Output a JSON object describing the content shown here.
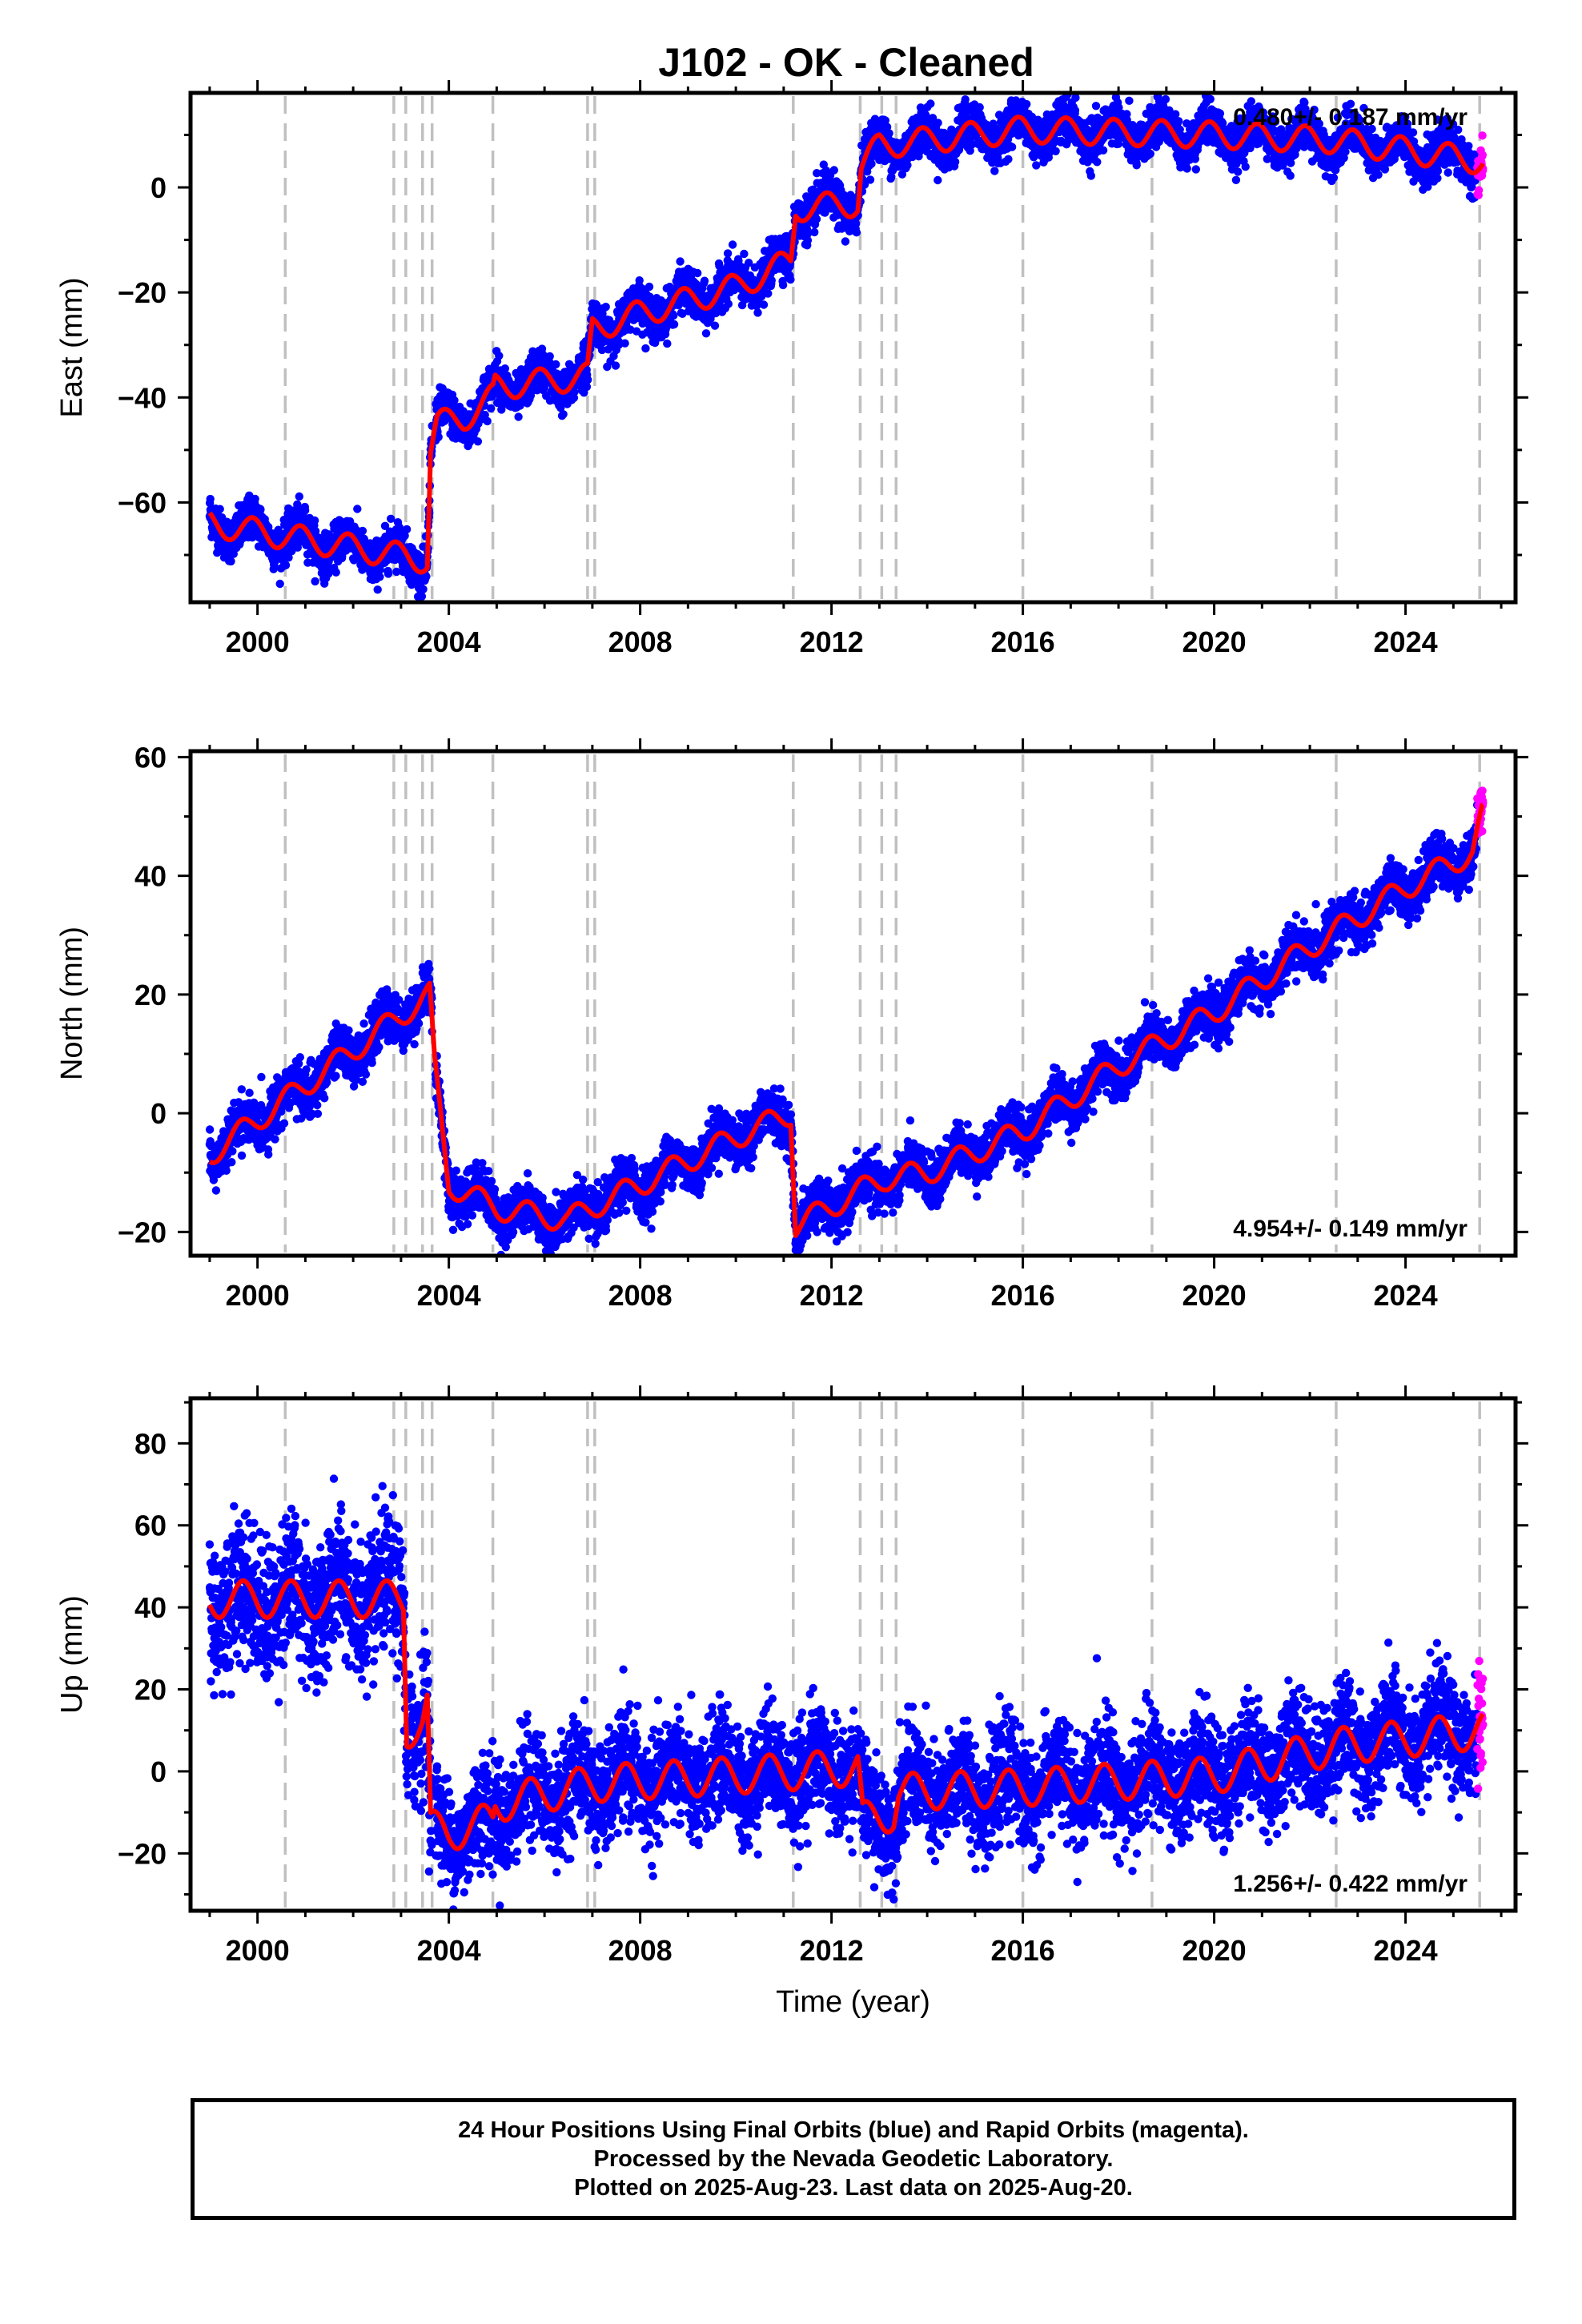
{
  "title": "J102  - OK - Cleaned",
  "footer": {
    "line1": "24 Hour Positions Using Final Orbits (blue) and Rapid Orbits (magenta).",
    "line2": "Processed by the Nevada Geodetic Laboratory.",
    "line3": "Plotted on 2025-Aug-23. Last data on 2025-Aug-20."
  },
  "chart_data": [
    {
      "type": "scatter",
      "ylabel": "East (mm)",
      "xlabel": "",
      "rate_label": "0.480+/- 0.187 mm/yr",
      "xlim": [
        1998.6,
        2026.3
      ],
      "ylim": [
        -79,
        18
      ],
      "xticks": [
        2000,
        2004,
        2008,
        2012,
        2016,
        2020,
        2024
      ],
      "yticks": [
        -60,
        -40,
        -20,
        0
      ],
      "grid": false,
      "colors": {
        "final": "#0000ff",
        "rapid": "#ff00ff",
        "model": "#ff0000",
        "event": "#c0c0c0"
      },
      "event_lines": [
        2000.58,
        2002.85,
        2003.1,
        2003.45,
        2003.65,
        2004.92,
        2006.9,
        2007.05,
        2011.2,
        2012.6,
        2013.05,
        2013.35,
        2016.0,
        2018.7,
        2022.55,
        2025.55
      ],
      "series": [
        {
          "name": "model",
          "points": [
            [
              1999.0,
              -64
            ],
            [
              2003.55,
              -71
            ],
            [
              2003.62,
              -50
            ],
            [
              2003.75,
              -45
            ],
            [
              2004.3,
              -44
            ],
            [
              2004.92,
              -40
            ],
            [
              2004.97,
              -38
            ],
            [
              2006.9,
              -36
            ],
            [
              2007.0,
              -27
            ],
            [
              2008.0,
              -24
            ],
            [
              2010.0,
              -19
            ],
            [
              2011.15,
              -14
            ],
            [
              2011.25,
              -4
            ],
            [
              2012.55,
              -3
            ],
            [
              2012.62,
              4
            ],
            [
              2013.0,
              8
            ],
            [
              2016.0,
              11
            ],
            [
              2020.0,
              10
            ],
            [
              2022.5,
              9
            ],
            [
              2025.6,
              5
            ]
          ],
          "seasonal_amplitude": 2.5,
          "seasonal_phase": 0.35
        }
      ]
    },
    {
      "type": "scatter",
      "ylabel": "North (mm)",
      "xlabel": "",
      "rate_label": "4.954+/- 0.149 mm/yr",
      "xlim": [
        1998.6,
        2026.3
      ],
      "ylim": [
        -24,
        61
      ],
      "xticks": [
        2000,
        2004,
        2008,
        2012,
        2016,
        2020,
        2024
      ],
      "yticks": [
        -20,
        0,
        20,
        40,
        60
      ],
      "grid": false,
      "colors": {
        "final": "#0000ff",
        "rapid": "#ff00ff",
        "model": "#ff0000",
        "event": "#c0c0c0"
      },
      "event_lines": [
        2000.58,
        2002.85,
        2003.1,
        2003.45,
        2003.65,
        2004.92,
        2006.9,
        2007.05,
        2011.2,
        2012.6,
        2013.05,
        2013.35,
        2016.0,
        2018.7,
        2022.55,
        2025.55
      ],
      "series": [
        {
          "name": "model",
          "points": [
            [
              1999.0,
              -7
            ],
            [
              2003.6,
              20
            ],
            [
              2003.7,
              8
            ],
            [
              2004.0,
              -12
            ],
            [
              2005.0,
              -16
            ],
            [
              2006.5,
              -18
            ],
            [
              2006.95,
              -16
            ],
            [
              2008.0,
              -12
            ],
            [
              2010.0,
              -4
            ],
            [
              2011.15,
              0
            ],
            [
              2011.25,
              -19
            ],
            [
              2012.6,
              -13
            ],
            [
              2013.1,
              -11
            ],
            [
              2014.0,
              -10
            ],
            [
              2016.0,
              -3
            ],
            [
              2018.0,
              8
            ],
            [
              2020.0,
              17
            ],
            [
              2022.0,
              28
            ],
            [
              2024.0,
              38
            ],
            [
              2025.4,
              44
            ],
            [
              2025.6,
              50
            ]
          ],
          "seasonal_amplitude": 2.0,
          "seasonal_phase": 0.6
        }
      ]
    },
    {
      "type": "scatter",
      "ylabel": "Up (mm)",
      "xlabel": "Time (year)",
      "rate_label": "1.256+/- 0.422 mm/yr",
      "xlim": [
        1998.6,
        2026.3
      ],
      "ylim": [
        -34,
        91
      ],
      "xticks": [
        2000,
        2004,
        2008,
        2012,
        2016,
        2020,
        2024
      ],
      "yticks": [
        -20,
        0,
        20,
        40,
        60,
        80
      ],
      "grid": false,
      "colors": {
        "final": "#0000ff",
        "rapid": "#ff00ff",
        "model": "#ff0000",
        "event": "#c0c0c0"
      },
      "event_lines": [
        2000.58,
        2002.85,
        2003.1,
        2003.45,
        2003.65,
        2004.92,
        2006.9,
        2007.05,
        2011.2,
        2012.6,
        2013.05,
        2013.35,
        2016.0,
        2018.7,
        2022.55,
        2025.55
      ],
      "series": [
        {
          "name": "model",
          "points": [
            [
              1999.0,
              42
            ],
            [
              2003.05,
              42
            ],
            [
              2003.12,
              10
            ],
            [
              2003.45,
              12
            ],
            [
              2003.55,
              16
            ],
            [
              2003.62,
              -14
            ],
            [
              2004.0,
              -15
            ],
            [
              2004.92,
              -12
            ],
            [
              2004.97,
              -8
            ],
            [
              2007.0,
              -3
            ],
            [
              2010.0,
              -1
            ],
            [
              2012.55,
              1
            ],
            [
              2012.65,
              -12
            ],
            [
              2013.3,
              -10
            ],
            [
              2013.4,
              -5
            ],
            [
              2016.0,
              -4
            ],
            [
              2020.0,
              -1
            ],
            [
              2022.5,
              6
            ],
            [
              2025.6,
              10
            ]
          ],
          "seasonal_amplitude": 4.5,
          "seasonal_phase": 0.55
        }
      ]
    }
  ]
}
